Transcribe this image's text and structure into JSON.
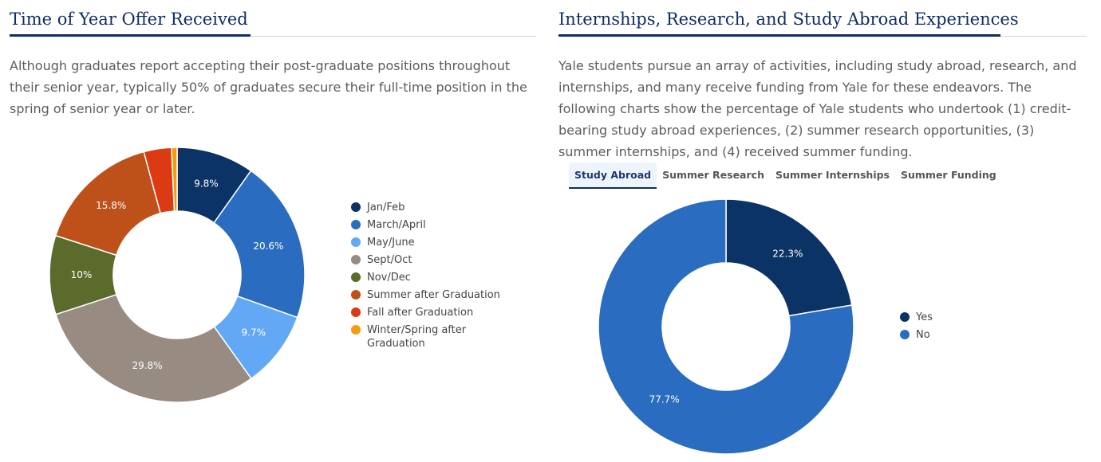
{
  "left": {
    "title": "Time of Year Offer Received",
    "paragraph": "Although graduates report accepting their post-graduate positions throughout their senior year, typically 50% of graduates secure their full-time position in the spring of senior year or later."
  },
  "right": {
    "title": "Internships, Research, and Study Abroad Experiences",
    "paragraph": "Yale students pursue an array of activities, including study abroad, research, and internships, and many receive funding from Yale for these endeavors. The following charts show the percentage of Yale students who undertook (1) credit-bearing study abroad experiences, (2) summer research opportunities, (3) summer internships, and (4) received summer funding.",
    "tabs": [
      "Study Abroad",
      "Summer Research",
      "Summer Internships",
      "Summer Funding"
    ],
    "active_tab": "Study Abroad"
  },
  "chart_data": [
    {
      "type": "pie",
      "title": "Time of Year Offer Received",
      "categories": [
        "Jan/Feb",
        "March/April",
        "May/June",
        "Sept/Oct",
        "Nov/Dec",
        "Summer after Graduation",
        "Fall after Graduation",
        "Winter/Spring after Graduation"
      ],
      "values": [
        9.8,
        20.6,
        9.7,
        29.8,
        10,
        15.8,
        3.5,
        0.7
      ],
      "labels": [
        "9.8%",
        "20.6%",
        "9.7%",
        "29.8%",
        "10%",
        "15.8%",
        "",
        ""
      ],
      "colors": [
        "#0c3366",
        "#2a6cc0",
        "#62a8f5",
        "#978b82",
        "#5a6b2c",
        "#bd5119",
        "#dc3a12",
        "#f59c0c"
      ],
      "legend": "right"
    },
    {
      "type": "pie",
      "title": "Study Abroad",
      "categories": [
        "Yes",
        "No"
      ],
      "values": [
        22.3,
        77.7
      ],
      "labels": [
        "22.3%",
        "77.7%"
      ],
      "colors": [
        "#0c3366",
        "#2a6cc0"
      ],
      "legend": "right"
    }
  ]
}
